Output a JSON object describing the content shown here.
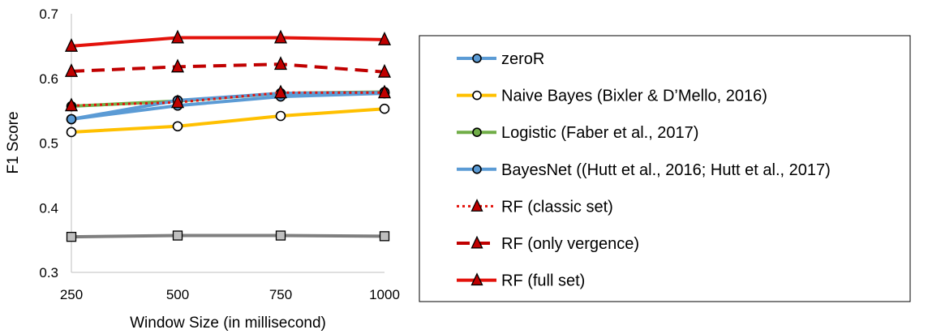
{
  "chart_data": {
    "type": "line",
    "xlabel": "Window Size (in millisecond)",
    "ylabel": "F1 Score",
    "categories": [
      "250",
      "500",
      "750",
      "1000"
    ],
    "ylim": [
      0.3,
      0.7
    ],
    "yticks": [
      "0.3",
      "0.4",
      "0.5",
      "0.6",
      "0.7"
    ],
    "grid": false,
    "legend_position": "right",
    "series": [
      {
        "name": "",
        "values": [
          0.355,
          0.357,
          0.357,
          0.356
        ],
        "color": "#7f7f7f",
        "marker": "square",
        "dash": "solid",
        "in_legend": false
      },
      {
        "name": "zeroR",
        "values": [
          0.537,
          0.558,
          0.572,
          0.577
        ],
        "color": "#5b9bd5",
        "marker": "circle",
        "dash": "solid",
        "in_legend": true
      },
      {
        "name": "Naive Bayes (Bixler & D’Mello, 2016)",
        "values": [
          0.517,
          0.526,
          0.542,
          0.553
        ],
        "color": "#ffc000",
        "marker": "circle",
        "dash": "solid",
        "in_legend": true
      },
      {
        "name": "Logistic (Faber et al., 2017)",
        "values": [
          0.557,
          0.565,
          0.577,
          0.579
        ],
        "color": "#70ad47",
        "marker": "circle",
        "dash": "solid",
        "in_legend": true
      },
      {
        "name": "BayesNet ((Hutt et al., 2016; Hutt et al., 2017)",
        "values": [
          0.537,
          0.566,
          0.577,
          0.578
        ],
        "color": "#5b9bd5",
        "marker": "circle",
        "dash": "solid",
        "in_legend": true
      },
      {
        "name": "RF (classic set)",
        "values": [
          0.558,
          0.563,
          0.578,
          0.578
        ],
        "color": "#e3120b",
        "marker": "triangle",
        "dash": "dotted",
        "in_legend": true
      },
      {
        "name": "RF (only vergence)",
        "values": [
          0.611,
          0.618,
          0.622,
          0.61
        ],
        "color": "#c00000",
        "marker": "triangle",
        "dash": "dashed",
        "in_legend": true
      },
      {
        "name": "RF (full set)",
        "values": [
          0.65,
          0.663,
          0.663,
          0.66
        ],
        "color": "#e3120b",
        "marker": "triangle",
        "dash": "solid",
        "in_legend": true
      }
    ]
  }
}
